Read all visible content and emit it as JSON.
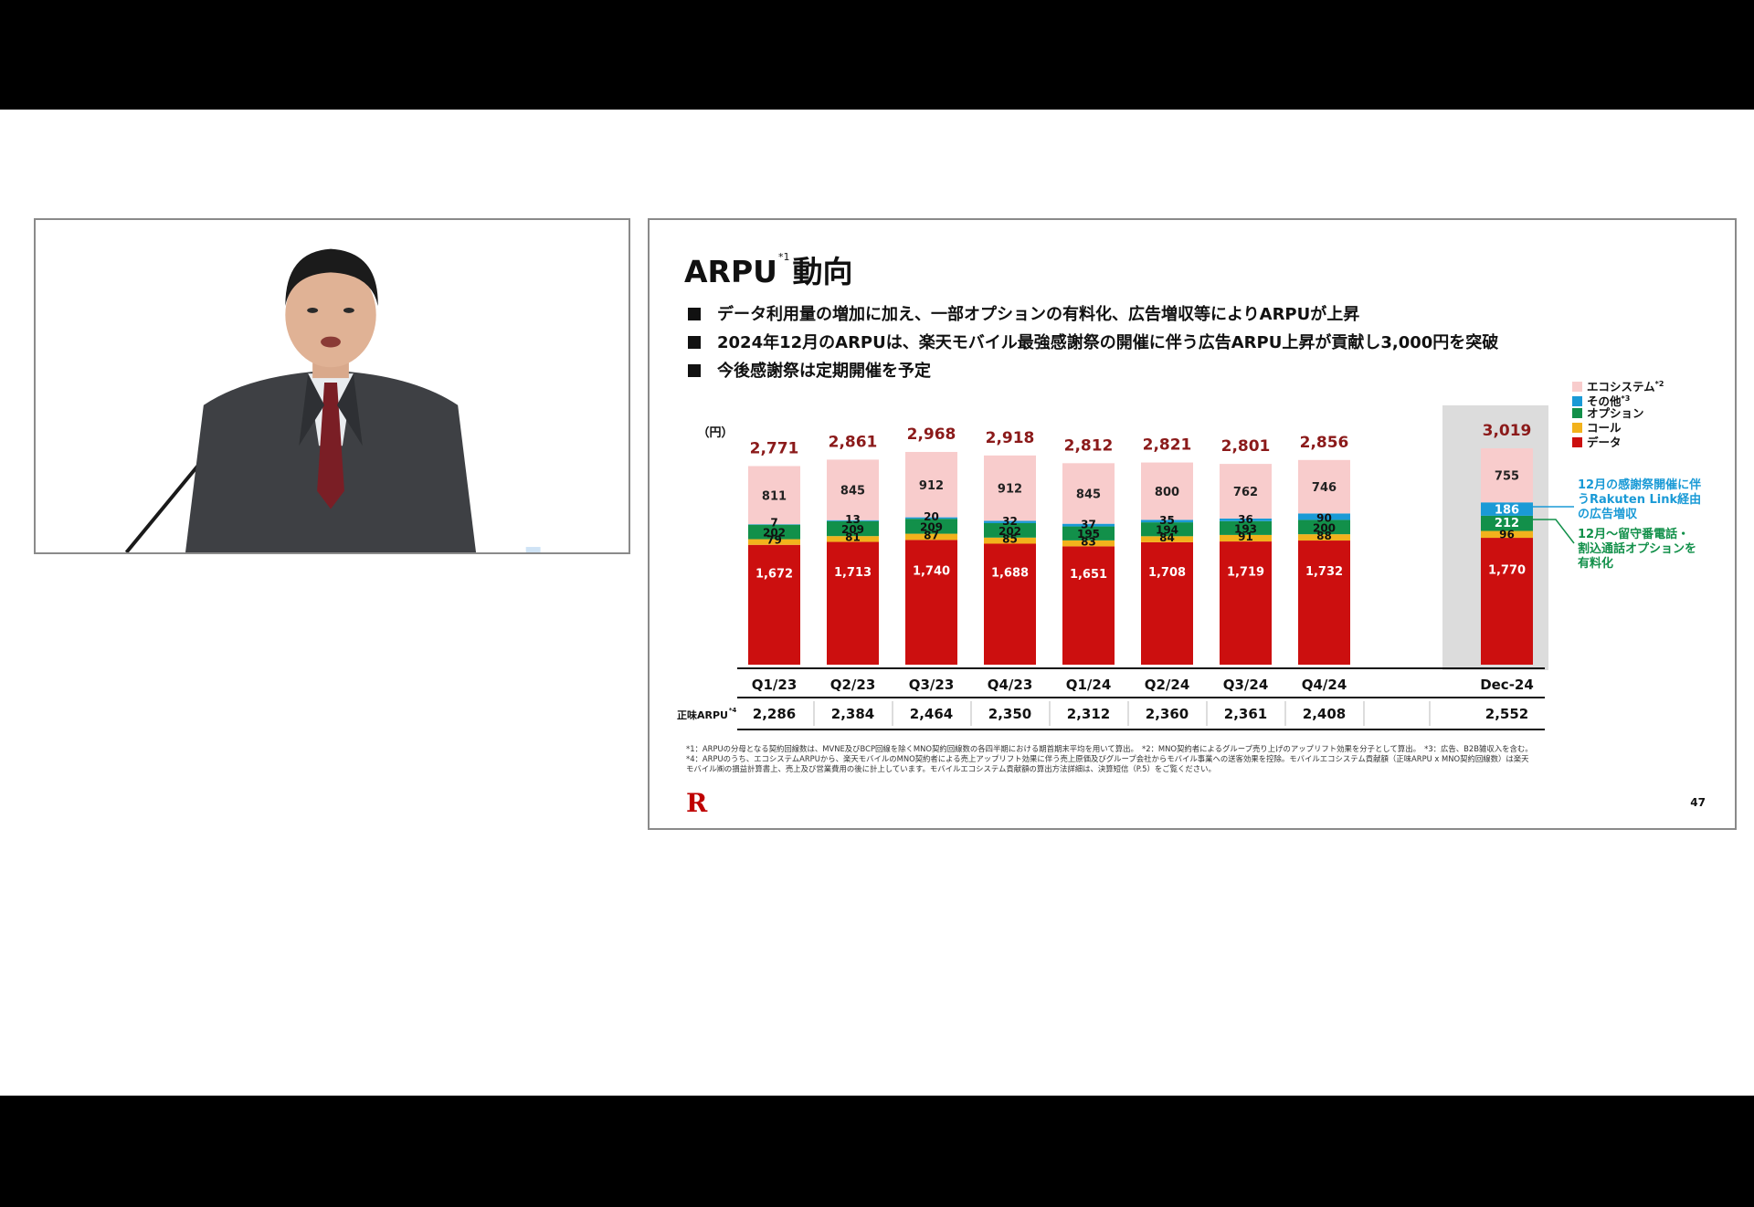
{
  "colors": {
    "data": "#cc0f0f",
    "call": "#f2b21c",
    "option": "#12904a",
    "other": "#1a9ad6",
    "ecosystem": "#f8cccc",
    "total_label": "#8b1a1a",
    "callout_blue": "#1a9ad6",
    "callout_green": "#12904a",
    "dec_highlight": "#dcdcdc"
  },
  "slide": {
    "title_main": "ARPU",
    "title_sup": "*1",
    "title_tail": "動向",
    "bullets": [
      "データ利用量の増加に加え、一部オプションの有料化、広告増収等によりARPUが上昇",
      "2024年12月のARPUは、楽天モバイル最強感謝祭の開催に伴う広告ARPU上昇が貢献し3,000円を突破",
      "今後感謝祭は定期開催を予定"
    ],
    "unit": "（円）",
    "core_arpu_label": "正味ARPU",
    "core_arpu_sup": "*4",
    "footnotes": [
      "*1：ARPUの分母となる契約回線数は、MVNE及びBCP回線を除くMNO契約回線数の各四半期における期首期末平均を用いて算出。　*2：MNO契約者によるグループ売り上げのアップリフト効果を分子として算出。　*3：広告、B2B雑収入を含む。",
      "*4：ARPUのうち、エコシステムARPUから、楽天モバイルのMNO契約者による売上アップリフト効果に伴う売上原価及びグループ会社からモバイル事業への送客効果を控除。モバイルエコシステム貢献額（正味ARPU x MNO契約回線数）は楽天",
      "モバイル㈱の損益計算書上、売上及び営業費用の後に計上しています。モバイルエコシステム貢献額の算出方法詳細は、決算短信（P.5）をご覧ください。"
    ],
    "page_number": "47",
    "logo": "R",
    "callouts": [
      "12月の感謝祭開催に伴",
      "うRakuten Link経由",
      "の広告増収",
      "12月～留守番電話・",
      "割込通話オプションを",
      "有料化"
    ]
  },
  "video": {
    "description_icon": "speaker-video"
  },
  "chart_data": {
    "type": "bar",
    "stacked": true,
    "unit": "（円）",
    "categories": [
      "Q1/23",
      "Q2/23",
      "Q3/23",
      "Q4/23",
      "Q1/24",
      "Q2/24",
      "Q3/24",
      "Q4/24",
      "Dec-24"
    ],
    "totals": [
      "2,771",
      "2,861",
      "2,968",
      "2,918",
      "2,812",
      "2,821",
      "2,801",
      "2,856",
      "3,019"
    ],
    "series": [
      {
        "name": "データ",
        "key": "data",
        "values": [
          1672,
          1713,
          1740,
          1688,
          1651,
          1708,
          1719,
          1732,
          1770
        ],
        "labels": [
          "1,672",
          "1,713",
          "1,740",
          "1,688",
          "1,651",
          "1,708",
          "1,719",
          "1,732",
          "1,770"
        ]
      },
      {
        "name": "コール",
        "key": "call",
        "values": [
          79,
          81,
          87,
          85,
          83,
          84,
          91,
          88,
          96
        ],
        "labels": [
          "79",
          "81",
          "87",
          "85",
          "83",
          "84",
          "91",
          "88",
          "96"
        ]
      },
      {
        "name": "オプション",
        "key": "option",
        "values": [
          202,
          209,
          209,
          202,
          195,
          194,
          193,
          200,
          212
        ],
        "labels": [
          "202",
          "209",
          "209",
          "202",
          "195",
          "194",
          "193",
          "200",
          "212"
        ]
      },
      {
        "name": "その他",
        "sup": "*3",
        "key": "other",
        "values": [
          7,
          13,
          20,
          32,
          37,
          35,
          36,
          90,
          186
        ],
        "labels": [
          "7",
          "13",
          "20",
          "32",
          "37",
          "35",
          "36",
          "90",
          "186"
        ]
      },
      {
        "name": "エコシステム",
        "sup": "*2",
        "key": "ecosystem",
        "values": [
          811,
          845,
          912,
          912,
          845,
          800,
          762,
          746,
          755
        ],
        "labels": [
          "811",
          "845",
          "912",
          "912",
          "845",
          "800",
          "762",
          "746",
          "755"
        ]
      }
    ],
    "core_arpu": [
      "2,286",
      "2,384",
      "2,464",
      "2,350",
      "2,312",
      "2,360",
      "2,361",
      "2,408",
      "2,552"
    ],
    "legend_position": "top-right",
    "grid": false
  }
}
